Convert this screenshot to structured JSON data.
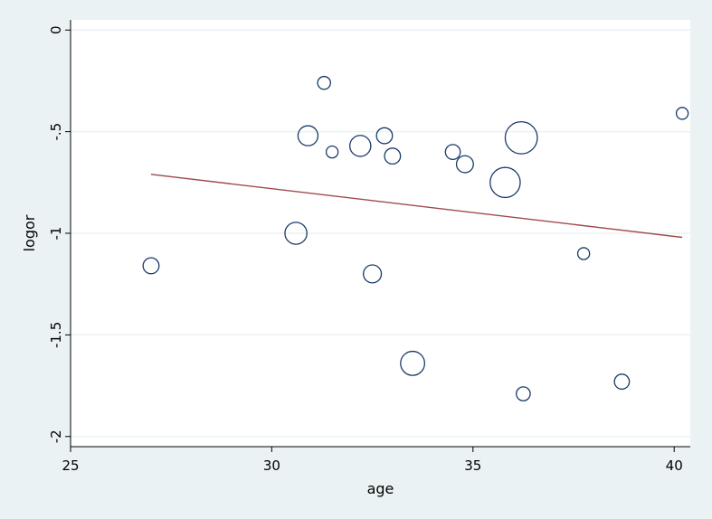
{
  "chart_data": {
    "type": "scatter",
    "title": "",
    "xlabel": "age",
    "ylabel": "logor",
    "xlim": [
      25,
      40.4
    ],
    "ylim": [
      -2.05,
      0.05
    ],
    "xticks": [
      25,
      30,
      35,
      40
    ],
    "yticks": [
      0,
      -0.5,
      -1,
      -1.5,
      -2
    ],
    "xtick_labels": [
      "25",
      "30",
      "35",
      "40"
    ],
    "ytick_labels": [
      "0",
      "-.5",
      "-1",
      "-1.5",
      "-2"
    ],
    "grid": "horizontal",
    "marker": "hollow circle sized by weight",
    "points": [
      {
        "x": 27.0,
        "y": -1.16,
        "size": 1.0
      },
      {
        "x": 30.6,
        "y": -1.0,
        "size": 1.6
      },
      {
        "x": 30.9,
        "y": -0.52,
        "size": 1.4
      },
      {
        "x": 31.3,
        "y": -0.26,
        "size": 0.7
      },
      {
        "x": 31.5,
        "y": -0.6,
        "size": 0.6
      },
      {
        "x": 32.2,
        "y": -0.57,
        "size": 1.5
      },
      {
        "x": 32.5,
        "y": -1.2,
        "size": 1.2
      },
      {
        "x": 32.8,
        "y": -0.52,
        "size": 1.0
      },
      {
        "x": 33.0,
        "y": -0.62,
        "size": 1.0
      },
      {
        "x": 33.5,
        "y": -1.64,
        "size": 1.8
      },
      {
        "x": 34.5,
        "y": -0.6,
        "size": 0.9
      },
      {
        "x": 34.8,
        "y": -0.66,
        "size": 1.1
      },
      {
        "x": 35.8,
        "y": -0.75,
        "size": 2.4
      },
      {
        "x": 36.2,
        "y": -0.53,
        "size": 2.6
      },
      {
        "x": 36.25,
        "y": -1.79,
        "size": 0.8
      },
      {
        "x": 37.75,
        "y": -1.1,
        "size": 0.6
      },
      {
        "x": 38.7,
        "y": -1.73,
        "size": 0.9
      },
      {
        "x": 40.2,
        "y": -0.41,
        "size": 0.6
      }
    ],
    "fit_line": {
      "x": [
        27.0,
        40.2
      ],
      "y": [
        -0.71,
        -1.02
      ]
    },
    "colors": {
      "marker": "#1a3a6a",
      "fit_line": "#a04a4a",
      "grid": "#eaf2f3",
      "plot_bg": "#ffffff",
      "outer_bg": "#eaf2f3"
    }
  }
}
